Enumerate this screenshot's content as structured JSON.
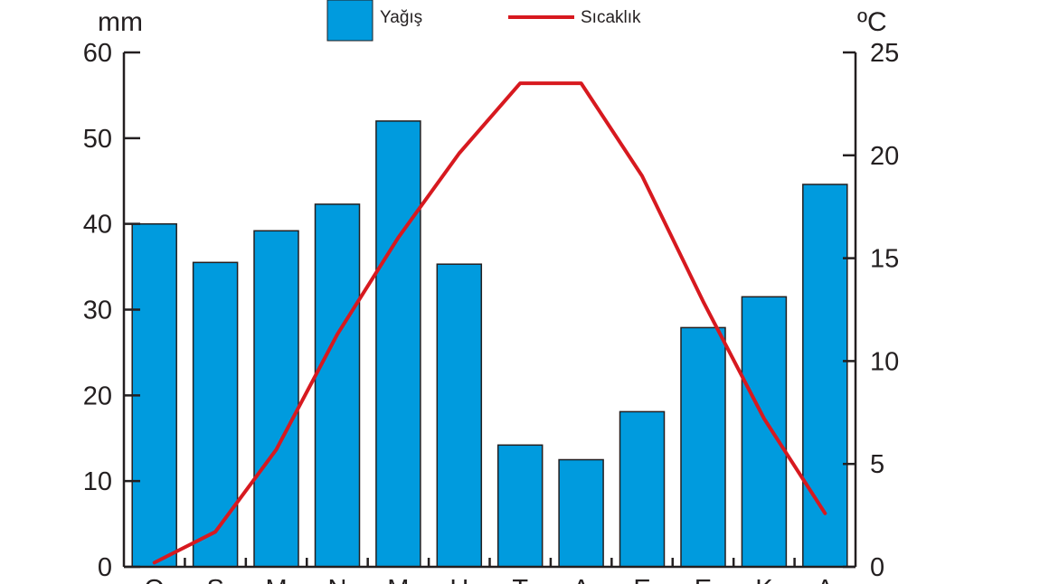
{
  "chart_data": {
    "type": "bar",
    "categories": [
      "O",
      "Ş",
      "M",
      "N",
      "M",
      "H",
      "T",
      "A",
      "E",
      "E",
      "K",
      "A"
    ],
    "left_axis": {
      "unit": "mm",
      "ylim": [
        0,
        60
      ],
      "ticks": [
        0,
        10,
        20,
        30,
        40,
        50,
        60
      ]
    },
    "right_axis": {
      "unit": "ºC",
      "ylim": [
        0,
        25
      ],
      "ticks": [
        0,
        5,
        10,
        15,
        20,
        25
      ]
    },
    "series": [
      {
        "name": "Yağış",
        "type": "bar",
        "axis": "left",
        "color": "#009bde",
        "values": [
          40,
          35.5,
          39.2,
          42.3,
          52,
          35.3,
          14.2,
          12.5,
          18.1,
          27.9,
          31.5,
          44.6
        ]
      },
      {
        "name": "Sıcaklık",
        "type": "line",
        "axis": "right",
        "color": "#d7191f",
        "values": [
          0.2,
          1.7,
          5.7,
          11.3,
          16.0,
          20.1,
          23.5,
          23.5,
          19.0,
          12.9,
          7.2,
          2.6
        ]
      }
    ],
    "grid": false,
    "legend_position": "top-center"
  }
}
